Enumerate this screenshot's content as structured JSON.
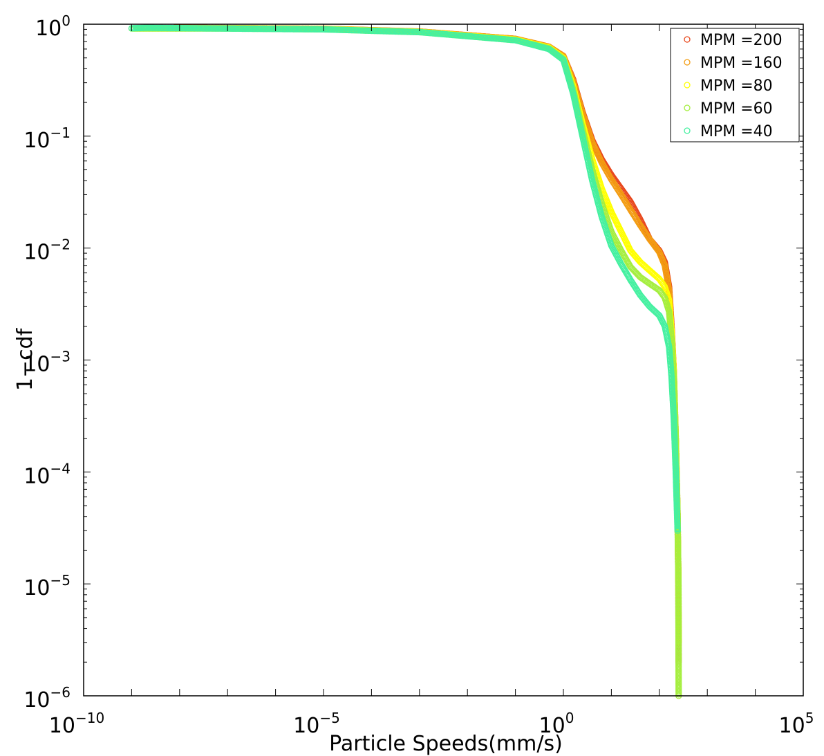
{
  "chart_data": {
    "type": "scatter",
    "title": "",
    "xlabel": "Particle Speeds(mm/s)",
    "ylabel": "1−cdf",
    "xscale": "log",
    "yscale": "log",
    "xlim": [
      1e-10,
      100000
    ],
    "ylim": [
      1e-06,
      1
    ],
    "x_ticks": [
      {
        "base": "10",
        "exp": "−10",
        "value": 1e-10
      },
      {
        "base": "10",
        "exp": "−5",
        "value": 1e-05
      },
      {
        "base": "10",
        "exp": "0",
        "value": 1
      },
      {
        "base": "10",
        "exp": "5",
        "value": 100000
      }
    ],
    "y_ticks": [
      {
        "base": "10",
        "exp": "0",
        "value": 1
      },
      {
        "base": "10",
        "exp": "−1",
        "value": 0.1
      },
      {
        "base": "10",
        "exp": "−2",
        "value": 0.01
      },
      {
        "base": "10",
        "exp": "−3",
        "value": 0.001
      },
      {
        "base": "10",
        "exp": "−4",
        "value": 0.0001
      },
      {
        "base": "10",
        "exp": "−5",
        "value": 1e-05
      },
      {
        "base": "10",
        "exp": "−6",
        "value": 1e-06
      }
    ],
    "grid": false,
    "legend_position": "top-right",
    "marker": "open-circle",
    "series": [
      {
        "name": "MPM =200",
        "color": "#e8471c",
        "points": [
          [
            8e-09,
            0.93
          ],
          [
            1e-07,
            0.925
          ],
          [
            1e-05,
            0.91
          ],
          [
            0.001,
            0.86
          ],
          [
            0.1,
            0.74
          ],
          [
            0.5,
            0.63
          ],
          [
            1.0,
            0.52
          ],
          [
            1.6,
            0.32
          ],
          [
            2.5,
            0.165
          ],
          [
            4.0,
            0.092
          ],
          [
            6.3,
            0.062
          ],
          [
            10,
            0.045
          ],
          [
            16,
            0.034
          ],
          [
            25,
            0.026
          ],
          [
            40,
            0.018
          ],
          [
            63,
            0.012
          ],
          [
            100,
            0.0095
          ],
          [
            130,
            0.0075
          ],
          [
            160,
            0.0045
          ],
          [
            180,
            0.002
          ],
          [
            200,
            0.0008
          ],
          [
            220,
            0.0002
          ],
          [
            240,
            4e-05
          ],
          [
            250,
            1e-05
          ],
          [
            251,
            5e-06
          ],
          [
            252,
            2e-06
          ]
        ]
      },
      {
        "name": "MPM =160",
        "color": "#f39c12",
        "points": [
          [
            8e-09,
            0.93
          ],
          [
            1e-07,
            0.925
          ],
          [
            1e-05,
            0.91
          ],
          [
            0.001,
            0.86
          ],
          [
            0.1,
            0.74
          ],
          [
            0.5,
            0.63
          ],
          [
            1.0,
            0.52
          ],
          [
            1.6,
            0.31
          ],
          [
            2.5,
            0.16
          ],
          [
            4.0,
            0.088
          ],
          [
            6.3,
            0.058
          ],
          [
            10,
            0.041
          ],
          [
            16,
            0.03
          ],
          [
            25,
            0.022
          ],
          [
            40,
            0.016
          ],
          [
            63,
            0.012
          ],
          [
            100,
            0.0092
          ],
          [
            130,
            0.007
          ],
          [
            160,
            0.0042
          ],
          [
            180,
            0.0018
          ],
          [
            200,
            0.0007
          ],
          [
            220,
            0.0002
          ],
          [
            240,
            4e-05
          ],
          [
            250,
            1e-05
          ],
          [
            252,
            3e-06
          ]
        ]
      },
      {
        "name": "MPM =80",
        "color": "#ffff00",
        "points": [
          [
            3e-09,
            0.92
          ],
          [
            1e-07,
            0.92
          ],
          [
            1e-05,
            0.905
          ],
          [
            0.001,
            0.855
          ],
          [
            0.1,
            0.73
          ],
          [
            0.5,
            0.62
          ],
          [
            1.0,
            0.5
          ],
          [
            1.6,
            0.28
          ],
          [
            2.5,
            0.13
          ],
          [
            4.0,
            0.062
          ],
          [
            6.3,
            0.034
          ],
          [
            10,
            0.021
          ],
          [
            16,
            0.014
          ],
          [
            25,
            0.0095
          ],
          [
            40,
            0.0075
          ],
          [
            63,
            0.0063
          ],
          [
            100,
            0.0053
          ],
          [
            130,
            0.0045
          ],
          [
            160,
            0.0034
          ],
          [
            180,
            0.0018
          ],
          [
            200,
            0.0008
          ],
          [
            220,
            0.0002
          ],
          [
            240,
            4e-05
          ],
          [
            250,
            1e-05
          ],
          [
            252,
            3e-06
          ]
        ]
      },
      {
        "name": "MPM =60",
        "color": "#a4ee3e",
        "points": [
          [
            1e-09,
            0.915
          ],
          [
            1e-07,
            0.915
          ],
          [
            1e-05,
            0.9
          ],
          [
            0.001,
            0.85
          ],
          [
            0.1,
            0.72
          ],
          [
            0.5,
            0.61
          ],
          [
            1.0,
            0.49
          ],
          [
            1.6,
            0.26
          ],
          [
            2.5,
            0.115
          ],
          [
            4.0,
            0.05
          ],
          [
            6.3,
            0.025
          ],
          [
            10,
            0.014
          ],
          [
            16,
            0.0095
          ],
          [
            25,
            0.0068
          ],
          [
            40,
            0.0055
          ],
          [
            63,
            0.0048
          ],
          [
            100,
            0.0042
          ],
          [
            130,
            0.0036
          ],
          [
            160,
            0.0027
          ],
          [
            180,
            0.0015
          ],
          [
            200,
            0.0007
          ],
          [
            220,
            0.0002
          ],
          [
            240,
            4e-05
          ],
          [
            250,
            1e-05
          ],
          [
            252,
            2e-06
          ],
          [
            253,
            1e-06
          ]
        ]
      },
      {
        "name": "MPM =40",
        "color": "#44f0a0",
        "points": [
          [
            1e-09,
            0.92
          ],
          [
            2e-09,
            0.93
          ],
          [
            1e-07,
            0.915
          ],
          [
            1e-05,
            0.9
          ],
          [
            0.001,
            0.85
          ],
          [
            0.1,
            0.72
          ],
          [
            0.5,
            0.6
          ],
          [
            1.0,
            0.48
          ],
          [
            1.6,
            0.24
          ],
          [
            2.5,
            0.1
          ],
          [
            4.0,
            0.04
          ],
          [
            6.3,
            0.019
          ],
          [
            10,
            0.0105
          ],
          [
            16,
            0.0072
          ],
          [
            25,
            0.0052
          ],
          [
            40,
            0.0038
          ],
          [
            63,
            0.003
          ],
          [
            100,
            0.0025
          ],
          [
            130,
            0.002
          ],
          [
            160,
            0.0013
          ],
          [
            180,
            0.0007
          ],
          [
            200,
            0.0003
          ],
          [
            220,
            0.0001
          ],
          [
            240,
            3e-05
          ]
        ]
      }
    ]
  }
}
